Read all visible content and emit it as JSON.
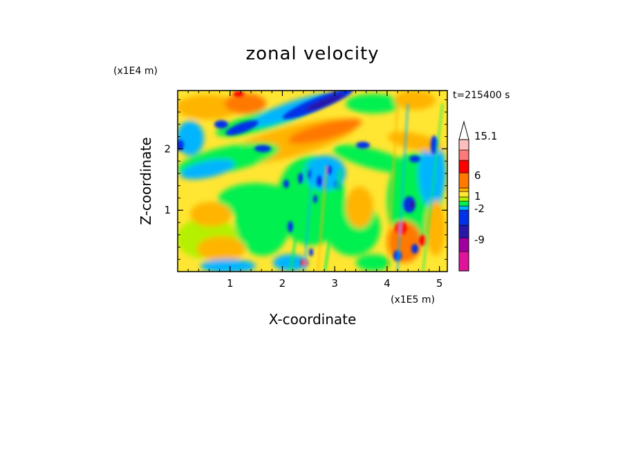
{
  "chart_data": {
    "type": "heatmap",
    "title": "zonal velocity",
    "xlabel": "X-coordinate",
    "ylabel": "Z-coordinate",
    "x_scale_note": "(x1E5 m)",
    "y_scale_note": "(x1E4 m)",
    "time_label": "t=215400 s",
    "xlim": [
      0,
      5.15
    ],
    "ylim": [
      0,
      2.95
    ],
    "x_ticks": [
      "1",
      "2",
      "3",
      "4",
      "5"
    ],
    "y_ticks": [
      "1",
      "2"
    ],
    "colorbar": {
      "tick_labels": [
        "15.1",
        "6",
        "1",
        "-2",
        "-9"
      ],
      "levels_bottom_to_top": [
        {
          "color": "#e0149c",
          "max": -12
        },
        {
          "color": "#a000a0",
          "max": -9
        },
        {
          "color": "#2818a8",
          "max": -6
        },
        {
          "color": "#0030e8",
          "max": -3
        },
        {
          "color": "#00b4ff",
          "max": -2
        },
        {
          "color": "#00f050",
          "max": -1
        },
        {
          "color": "#b4f000",
          "max": 0
        },
        {
          "color": "#ffe632",
          "max": 1
        },
        {
          "color": "#ffb400",
          "max": 2
        },
        {
          "color": "#ff7800",
          "max": 6
        },
        {
          "color": "#ff0000",
          "max": 9
        },
        {
          "color": "#ff7878",
          "max": 12
        },
        {
          "color": "#ffbebe",
          "max": 15.1
        }
      ],
      "extend": "max"
    },
    "grid": false,
    "field_description_values": {
      "z_rows": [
        0.15,
        0.5,
        0.9,
        1.3,
        1.7,
        2.1,
        2.45,
        2.75
      ],
      "background_dominant": [
        "yellow",
        "yellow",
        "green",
        "yellow",
        "yellow",
        "orange",
        "yellow",
        "orange"
      ]
    }
  },
  "colors": {
    "background": "#ffffff",
    "axes": "#000000"
  }
}
